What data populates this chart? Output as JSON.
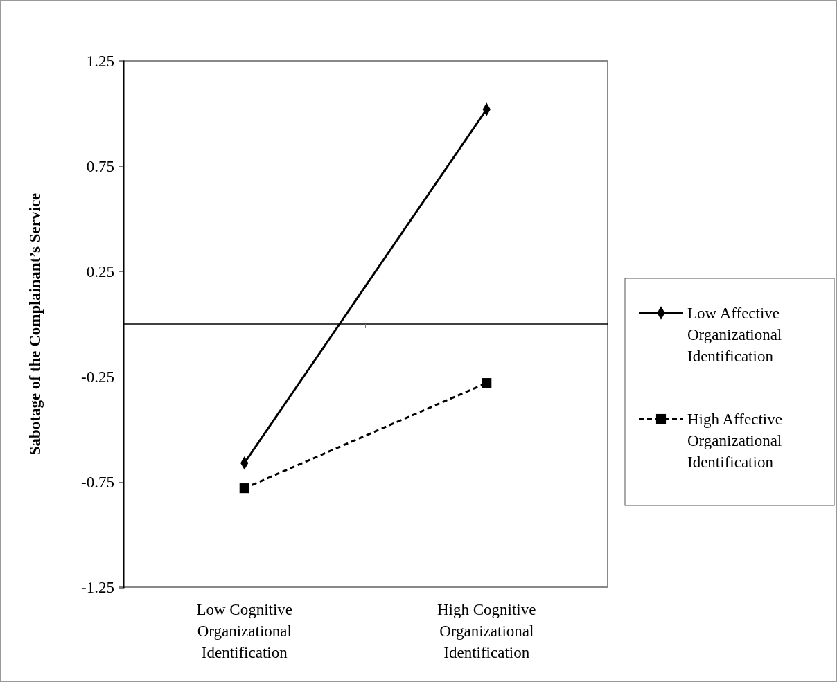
{
  "chart_data": {
    "type": "line",
    "ylabel": "Sabotage of the Complainant’s Service",
    "categories": [
      "Low Cognitive Organizational Identification",
      "High Cognitive Organizational Identification"
    ],
    "series": [
      {
        "name": "Low Affective Organizational Identification",
        "color": "#000000",
        "values": [
          -0.66,
          1.02
        ],
        "marker": "diamond",
        "line_style": "solid"
      },
      {
        "name": "High Affective Organizational Identification",
        "color": "#000000",
        "values": [
          -0.78,
          -0.28
        ],
        "marker": "square",
        "line_style": "dashed"
      }
    ],
    "ylim": [
      -1.25,
      1.25
    ],
    "yticks": [
      1.25,
      0.75,
      0.25,
      -0.25,
      -0.75,
      -1.25
    ],
    "grid": false,
    "legend": "right"
  }
}
